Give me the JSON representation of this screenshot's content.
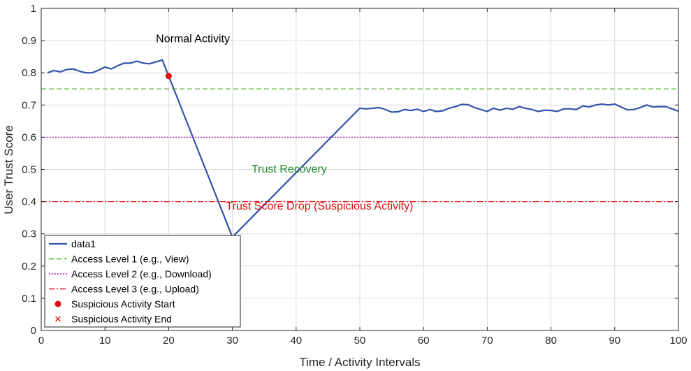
{
  "chart_data": {
    "type": "line",
    "title": "",
    "xlabel": "Time / Activity Intervals",
    "ylabel": "User Trust Score",
    "xlim": [
      0,
      100
    ],
    "ylim": [
      0,
      1
    ],
    "grid": true,
    "x_ticks": [
      0,
      10,
      20,
      30,
      40,
      50,
      60,
      70,
      80,
      90,
      100
    ],
    "y_ticks": [
      0,
      0.1,
      0.2,
      0.3,
      0.4,
      0.5,
      0.6,
      0.7,
      0.8,
      0.9,
      1
    ],
    "x_tick_labels": [
      "0",
      "10",
      "20",
      "30",
      "40",
      "50",
      "60",
      "70",
      "80",
      "90",
      "100"
    ],
    "y_tick_labels": [
      "0",
      "0.1",
      "0.2",
      "0.3",
      "0.4",
      "0.5",
      "0.6",
      "0.7",
      "0.8",
      "0.9",
      "1"
    ],
    "series": [
      {
        "name": "data1",
        "color": "#3352a8",
        "style": "solid",
        "x": [
          1,
          2,
          3,
          4,
          5,
          6,
          7,
          8,
          9,
          10,
          11,
          12,
          13,
          14,
          15,
          16,
          17,
          18,
          19,
          20,
          30,
          50,
          51,
          52,
          53,
          54,
          55,
          56,
          57,
          58,
          59,
          60,
          61,
          62,
          63,
          64,
          65,
          66,
          67,
          68,
          69,
          70,
          71,
          72,
          73,
          74,
          75,
          76,
          77,
          78,
          79,
          80,
          81,
          82,
          83,
          84,
          85,
          86,
          87,
          88,
          89,
          90,
          91,
          92,
          93,
          94,
          95,
          96,
          97,
          98,
          99,
          100
        ],
        "y": [
          0.8,
          0.807,
          0.803,
          0.81,
          0.812,
          0.805,
          0.8,
          0.8,
          0.808,
          0.818,
          0.812,
          0.822,
          0.83,
          0.83,
          0.836,
          0.83,
          0.828,
          0.834,
          0.84,
          0.79,
          0.29,
          0.69,
          0.688,
          0.69,
          0.692,
          0.686,
          0.678,
          0.679,
          0.686,
          0.683,
          0.687,
          0.68,
          0.686,
          0.68,
          0.682,
          0.69,
          0.695,
          0.702,
          0.701,
          0.692,
          0.686,
          0.68,
          0.69,
          0.684,
          0.69,
          0.687,
          0.695,
          0.69,
          0.686,
          0.68,
          0.684,
          0.683,
          0.68,
          0.688,
          0.688,
          0.686,
          0.697,
          0.694,
          0.7,
          0.703,
          0.7,
          0.703,
          0.694,
          0.685,
          0.686,
          0.692,
          0.7,
          0.694,
          0.695,
          0.695,
          0.688,
          0.681
        ]
      },
      {
        "name": "Access Level 1 (e.g., View)",
        "color": "#44aa22",
        "style": "dashed",
        "y_constant": 0.75
      },
      {
        "name": "Access Level 2 (e.g., Download)",
        "color": "#b316b3",
        "style": "dotted",
        "y_constant": 0.6
      },
      {
        "name": "Access Level 3 (e.g., Upload)",
        "color": "#e01010",
        "style": "dashdot",
        "y_constant": 0.4
      }
    ],
    "markers": [
      {
        "name": "Suspicious Activity Start",
        "symbol": "circle",
        "color": "#e01010",
        "x": 20,
        "y": 0.79
      },
      {
        "name": "Suspicious Activity End",
        "symbol": "cross",
        "color": "#e01010",
        "x": null,
        "y": null
      }
    ],
    "annotations": [
      {
        "text": "Normal Activity",
        "x": 18,
        "y": 0.895,
        "color": "#000000"
      },
      {
        "text": "Trust Recovery",
        "x": 33,
        "y": 0.49,
        "color": "#1f8a2e"
      },
      {
        "text": "Trust Score Drop (Suspicious Activity)",
        "x": 29,
        "y": 0.375,
        "color": "#e01010"
      }
    ],
    "legend": {
      "placement": "bottom-left",
      "entries": [
        "data1",
        "Access Level 1 (e.g., View)",
        "Access Level 2 (e.g., Download)",
        "Access Level 3 (e.g., Upload)",
        "Suspicious Activity Start",
        "Suspicious Activity End"
      ]
    }
  }
}
